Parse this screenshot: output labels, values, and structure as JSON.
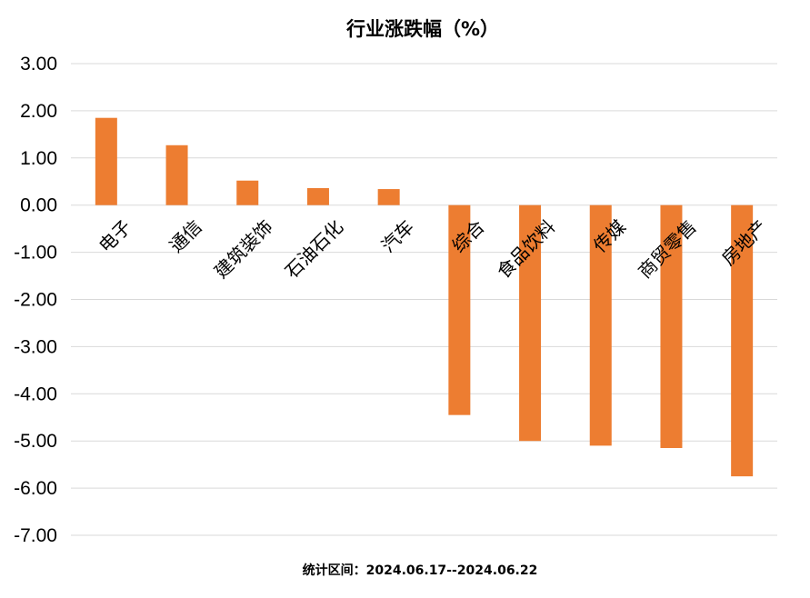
{
  "chart_data": {
    "type": "bar",
    "title": "行业涨跌幅（%）",
    "categories": [
      "电子",
      "通信",
      "建筑装饰",
      "石油石化",
      "汽车",
      "综合",
      "食品饮料",
      "传媒",
      "商贸零售",
      "房地产"
    ],
    "values": [
      1.85,
      1.27,
      0.52,
      0.36,
      0.34,
      -4.45,
      -5.0,
      -5.1,
      -5.15,
      -5.75
    ],
    "ylim": [
      -7,
      3
    ],
    "yticks": [
      3,
      2,
      1,
      0,
      -1,
      -2,
      -3,
      -4,
      -5,
      -6,
      -7
    ],
    "ytick_labels": [
      "3.00",
      "2.00",
      "1.00",
      "0.00",
      "-1.00",
      "-2.00",
      "-3.00",
      "-4.00",
      "-5.00",
      "-6.00",
      "-7.00"
    ],
    "xlabel": "",
    "ylabel": "",
    "grid": true,
    "legend": "none",
    "bar_color": "#ed7d31",
    "grid_color": "#d9d9d9"
  },
  "footnote": "统计区间：2024.06.17--2024.06.22"
}
